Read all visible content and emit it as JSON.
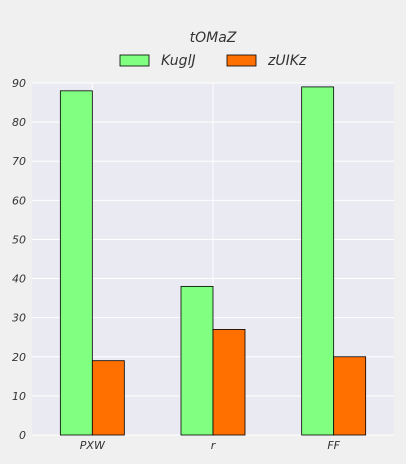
{
  "chart_data": {
    "type": "bar",
    "title": "tOMaZ",
    "categories": [
      "PXW",
      "r",
      "FF"
    ],
    "series": [
      {
        "name": "KuglJ",
        "values": [
          88,
          38,
          89
        ],
        "color": "#80ff80"
      },
      {
        "name": "zUIKz",
        "values": [
          19,
          27,
          20
        ],
        "color": "#ff7000"
      }
    ],
    "ylim": [
      0,
      90
    ],
    "yticks": [
      0,
      10,
      20,
      30,
      40,
      50,
      60,
      70,
      80,
      90
    ],
    "grid": true,
    "legend": "top-center",
    "colors": {
      "background": "#f0f0f0",
      "plot_background": "#eaeaf2",
      "grid": "#ffffff",
      "bar_edge": "#000000"
    }
  }
}
